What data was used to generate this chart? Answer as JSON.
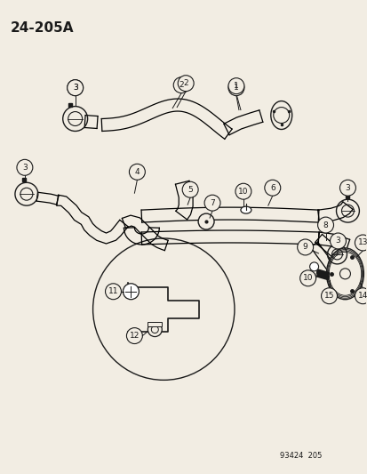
{
  "title": "24–205A",
  "footer": "93424  205",
  "bg_color": "#f2ede3",
  "line_color": "#1a1a1a",
  "text_color": "#1a1a1a"
}
